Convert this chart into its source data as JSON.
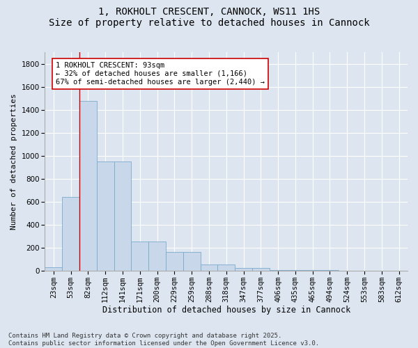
{
  "title": "1, ROKHOLT CRESCENT, CANNOCK, WS11 1HS",
  "subtitle": "Size of property relative to detached houses in Cannock",
  "xlabel": "Distribution of detached houses by size in Cannock",
  "ylabel": "Number of detached properties",
  "categories": [
    "23sqm",
    "53sqm",
    "82sqm",
    "112sqm",
    "141sqm",
    "171sqm",
    "200sqm",
    "229sqm",
    "259sqm",
    "288sqm",
    "318sqm",
    "347sqm",
    "377sqm",
    "406sqm",
    "435sqm",
    "465sqm",
    "494sqm",
    "524sqm",
    "553sqm",
    "583sqm",
    "612sqm"
  ],
  "values": [
    28,
    640,
    1480,
    950,
    950,
    255,
    255,
    160,
    160,
    55,
    55,
    22,
    22,
    6,
    6,
    2,
    2,
    0,
    0,
    0,
    0
  ],
  "bar_color": "#c8d8ea",
  "bar_edge_color": "#7aaaca",
  "vline_x": 1.5,
  "vline_color": "#cc0000",
  "annotation_text": "1 ROKHOLT CRESCENT: 93sqm\n← 32% of detached houses are smaller (1,166)\n67% of semi-detached houses are larger (2,440) →",
  "annotation_box_color": "white",
  "annotation_box_edge_color": "#cc0000",
  "ylim": [
    0,
    1900
  ],
  "yticks": [
    0,
    200,
    400,
    600,
    800,
    1000,
    1200,
    1400,
    1600,
    1800
  ],
  "bg_color": "#dde6f0",
  "plot_bg_color": "#dde6f0",
  "footer": "Contains HM Land Registry data © Crown copyright and database right 2025.\nContains public sector information licensed under the Open Government Licence v3.0.",
  "title_fontsize": 10,
  "subtitle_fontsize": 9,
  "xlabel_fontsize": 8.5,
  "ylabel_fontsize": 8,
  "tick_fontsize": 7.5,
  "footer_fontsize": 6.5,
  "grid_color": "#c0ccd8"
}
